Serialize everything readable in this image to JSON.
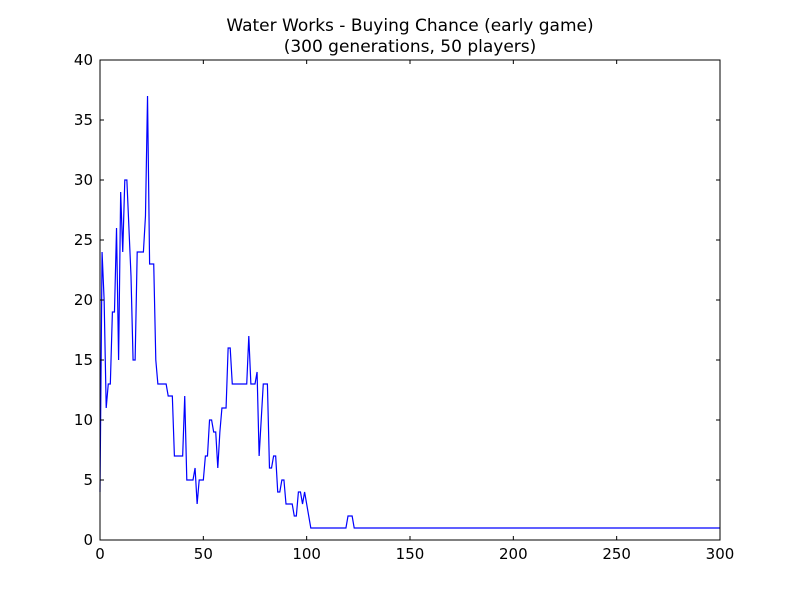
{
  "chart_data": {
    "type": "line",
    "title": "Water Works - Buying Chance (early game)",
    "subtitle": "(300 generations, 50 players)",
    "xlabel": "",
    "ylabel": "",
    "xlim": [
      0,
      300
    ],
    "ylim": [
      0,
      40
    ],
    "xticks": [
      0,
      50,
      100,
      150,
      200,
      250,
      300
    ],
    "yticks": [
      0,
      5,
      10,
      15,
      20,
      25,
      30,
      35,
      40
    ],
    "grid": false,
    "legend": "none",
    "series": [
      {
        "color": "#0000ff",
        "x": [
          0,
          1,
          2,
          3,
          4,
          5,
          6,
          7,
          8,
          9,
          10,
          11,
          12,
          13,
          14,
          15,
          16,
          17,
          18,
          19,
          20,
          21,
          22,
          23,
          24,
          25,
          26,
          27,
          28,
          30,
          31,
          32,
          33,
          34,
          35,
          36,
          37,
          38,
          39,
          40,
          41,
          42,
          43,
          44,
          45,
          46,
          47,
          48,
          49,
          50,
          51,
          52,
          53,
          54,
          55,
          56,
          57,
          58,
          59,
          60,
          61,
          62,
          63,
          64,
          65,
          70,
          71,
          72,
          73,
          74,
          75,
          76,
          77,
          78,
          79,
          80,
          81,
          82,
          83,
          84,
          85,
          86,
          87,
          88,
          89,
          90,
          91,
          92,
          93,
          94,
          95,
          96,
          97,
          98,
          99,
          100,
          101,
          102,
          103,
          119,
          120,
          121,
          122,
          123,
          300
        ],
        "y": [
          4,
          24,
          20,
          11,
          13,
          13,
          19,
          19,
          26,
          15,
          29,
          24,
          30,
          30,
          26,
          22,
          15,
          15,
          24,
          24,
          24,
          24,
          27,
          37,
          23,
          23,
          23,
          15,
          13,
          13,
          13,
          13,
          12,
          12,
          12,
          7,
          7,
          7,
          7,
          7,
          12,
          5,
          5,
          5,
          5,
          6,
          3,
          5,
          5,
          5,
          7,
          7,
          10,
          10,
          9,
          9,
          6,
          9,
          11,
          11,
          11,
          16,
          16,
          13,
          13,
          13,
          13,
          17,
          13,
          13,
          13,
          14,
          7,
          10,
          13,
          13,
          13,
          6,
          6,
          7,
          7,
          4,
          4,
          5,
          5,
          3,
          3,
          3,
          3,
          2,
          2,
          4,
          4,
          3,
          4,
          3,
          2,
          1,
          1,
          1,
          2,
          2,
          2,
          1,
          1
        ]
      }
    ]
  }
}
